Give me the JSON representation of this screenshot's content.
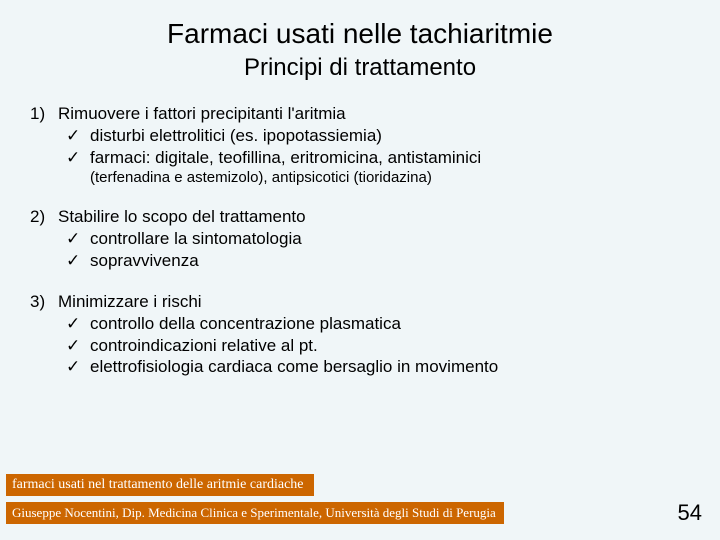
{
  "title": "Farmaci usati nelle tachiaritmie",
  "subtitle": "Principi di trattamento",
  "sections": [
    {
      "num": "1)",
      "heading": "Rimuovere i fattori precipitanti l'aritmia",
      "items": [
        "disturbi elettrolitici (es. ipopotassiemia)",
        "farmaci: digitale, teofillina, eritromicina, antistaminici"
      ],
      "note": "(terfenadina e astemizolo), antipsicotici (tioridazina)"
    },
    {
      "num": "2)",
      "heading": "Stabilire lo scopo del trattamento",
      "items": [
        "controllare la sintomatologia",
        "sopravvivenza"
      ]
    },
    {
      "num": "3)",
      "heading": "Minimizzare i rischi",
      "items": [
        "controllo della concentrazione plasmatica",
        "controindicazioni relative al pt.",
        "elettrofisiologia cardiaca come bersaglio in movimento"
      ]
    }
  ],
  "footer1": "farmaci usati nel trattamento delle aritmie cardiache",
  "footer2": "Giuseppe Nocentini, Dip. Medicina Clinica e Sperimentale, Università degli Studi di Perugia",
  "pageNumber": "54",
  "checkmark": "✓",
  "colors": {
    "background": "#f0f6f8",
    "footerBg": "#cc6600",
    "footerText": "#ffffff",
    "text": "#000000"
  }
}
